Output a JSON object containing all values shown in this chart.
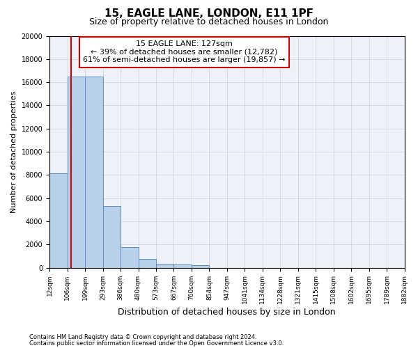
{
  "title1": "15, EAGLE LANE, LONDON, E11 1PF",
  "title2": "Size of property relative to detached houses in London",
  "xlabel": "Distribution of detached houses by size in London",
  "ylabel": "Number of detached properties",
  "bin_edges": [
    12,
    106,
    199,
    293,
    386,
    480,
    573,
    667,
    760,
    854,
    947,
    1041,
    1134,
    1228,
    1321,
    1415,
    1508,
    1602,
    1695,
    1789,
    1882
  ],
  "bar_heights": [
    8150,
    16500,
    16500,
    5300,
    1750,
    750,
    350,
    270,
    200,
    0,
    0,
    0,
    0,
    0,
    0,
    0,
    0,
    0,
    0,
    0
  ],
  "bar_color": "#b8d0e8",
  "bar_edge_color": "#5b8dc0",
  "red_line_x": 127,
  "red_line_color": "#cc0000",
  "ylim": [
    0,
    20000
  ],
  "yticks": [
    0,
    2000,
    4000,
    6000,
    8000,
    10000,
    12000,
    14000,
    16000,
    18000,
    20000
  ],
  "annotation_title": "15 EAGLE LANE: 127sqm",
  "annotation_line1": "← 39% of detached houses are smaller (12,782)",
  "annotation_line2": "61% of semi-detached houses are larger (19,857) →",
  "annotation_box_color": "#ffffff",
  "annotation_box_edge": "#cc0000",
  "footer1": "Contains HM Land Registry data © Crown copyright and database right 2024.",
  "footer2": "Contains public sector information licensed under the Open Government Licence v3.0.",
  "background_color": "#eef2f8",
  "grid_color": "#c8d0dc",
  "title1_fontsize": 11,
  "title2_fontsize": 9,
  "ylabel_fontsize": 8,
  "xlabel_fontsize": 9
}
